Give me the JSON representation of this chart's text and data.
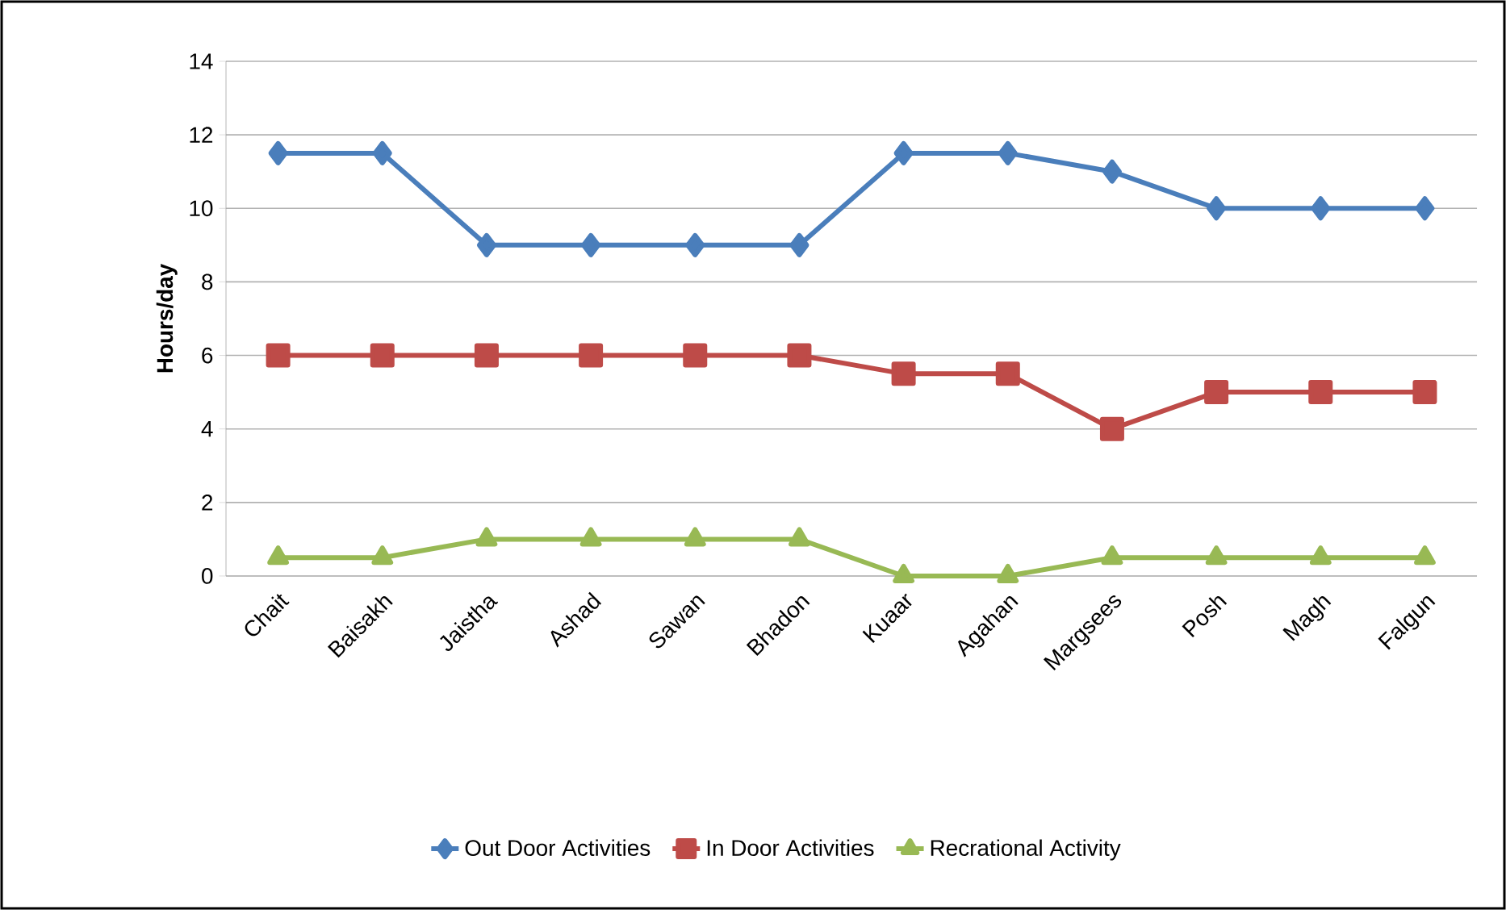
{
  "chart_data": {
    "type": "line",
    "ylabel": "Hours/day",
    "categories": [
      "Chait",
      "Baisakh",
      "Jaistha",
      "Ashad",
      "Sawan",
      "Bhadon",
      "Kuaar",
      "Agahan",
      "Margsees",
      "Posh",
      "Magh",
      "Falgun"
    ],
    "series": [
      {
        "name": "Out Door Activities",
        "color": "#4a7ebb",
        "marker": "diamond",
        "values": [
          11.5,
          11.5,
          9,
          9,
          9,
          9,
          11.5,
          11.5,
          11,
          10,
          10,
          10
        ]
      },
      {
        "name": "In Door Activities",
        "color": "#be4b48",
        "marker": "square",
        "values": [
          6,
          6,
          6,
          6,
          6,
          6,
          5.5,
          5.5,
          4,
          5,
          5,
          5
        ]
      },
      {
        "name": "Recrational Activity",
        "color": "#98b954",
        "marker": "triangle",
        "values": [
          0.5,
          0.5,
          1,
          1,
          1,
          1,
          0,
          0,
          0.5,
          0.5,
          0.5,
          0.5
        ]
      }
    ],
    "ylim": [
      0,
      14
    ],
    "yticks": [
      0,
      2,
      4,
      6,
      8,
      10,
      12,
      14
    ],
    "grid": "y",
    "legend": "bottom",
    "line_style": "solid"
  }
}
